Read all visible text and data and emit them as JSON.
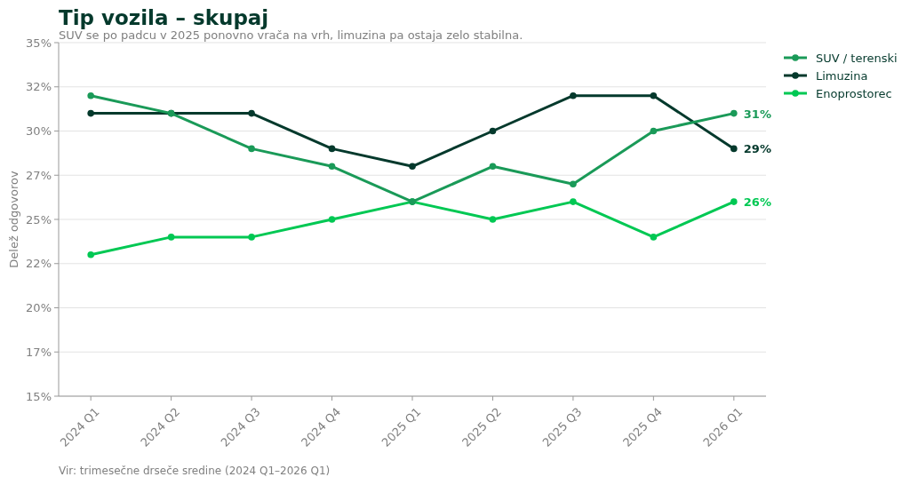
{
  "chart_data": {
    "type": "line",
    "title": "Tip vozila – skupaj",
    "subtitle": "SUV se po padcu v 2025 ponovno vrača na vrh, limuzina pa ostaja zelo stabilna.",
    "ylabel": "Delež odgovorov",
    "annotations": [
      "Vir: trimesečne drseče sredine (2024 Q1–2026 Q1)"
    ],
    "categories": [
      "2024 Q1",
      "2024 Q2",
      "2024 Q3",
      "2024 Q4",
      "2025 Q1",
      "2025 Q2",
      "2025 Q3",
      "2025 Q4",
      "2026 Q1"
    ],
    "series": [
      {
        "name": "SUV / terenski",
        "color": "#1a9a58",
        "values": [
          32,
          31,
          29,
          28,
          26,
          28,
          27,
          30,
          31
        ],
        "value_labels": [
          null,
          null,
          null,
          null,
          null,
          null,
          null,
          null,
          "31%"
        ]
      },
      {
        "name": "Limuzina",
        "color": "#04392c",
        "values": [
          31,
          31,
          31,
          29,
          28,
          30,
          32,
          32,
          29
        ],
        "value_labels": [
          null,
          null,
          null,
          null,
          null,
          null,
          null,
          null,
          "29%"
        ]
      },
      {
        "name": "Enoprostorec",
        "color": "#00c853",
        "values": [
          23,
          24,
          24,
          25,
          26,
          25,
          26,
          24,
          26
        ],
        "value_labels": [
          null,
          null,
          null,
          null,
          null,
          null,
          null,
          null,
          "26%"
        ]
      }
    ],
    "ylim": [
      15,
      35
    ],
    "yticks": [
      {
        "value": 15,
        "label": "15%"
      },
      {
        "value": 17.5,
        "label": "17%"
      },
      {
        "value": 20,
        "label": "20%"
      },
      {
        "value": 22.5,
        "label": "22%"
      },
      {
        "value": 25,
        "label": "25%"
      },
      {
        "value": 27.5,
        "label": "27%"
      },
      {
        "value": 30,
        "label": "30%"
      },
      {
        "value": 32.5,
        "label": "32%"
      },
      {
        "value": 35,
        "label": "35%"
      }
    ],
    "grid": "y",
    "legend": "top right",
    "marker": "circle",
    "line_style": "solid"
  }
}
